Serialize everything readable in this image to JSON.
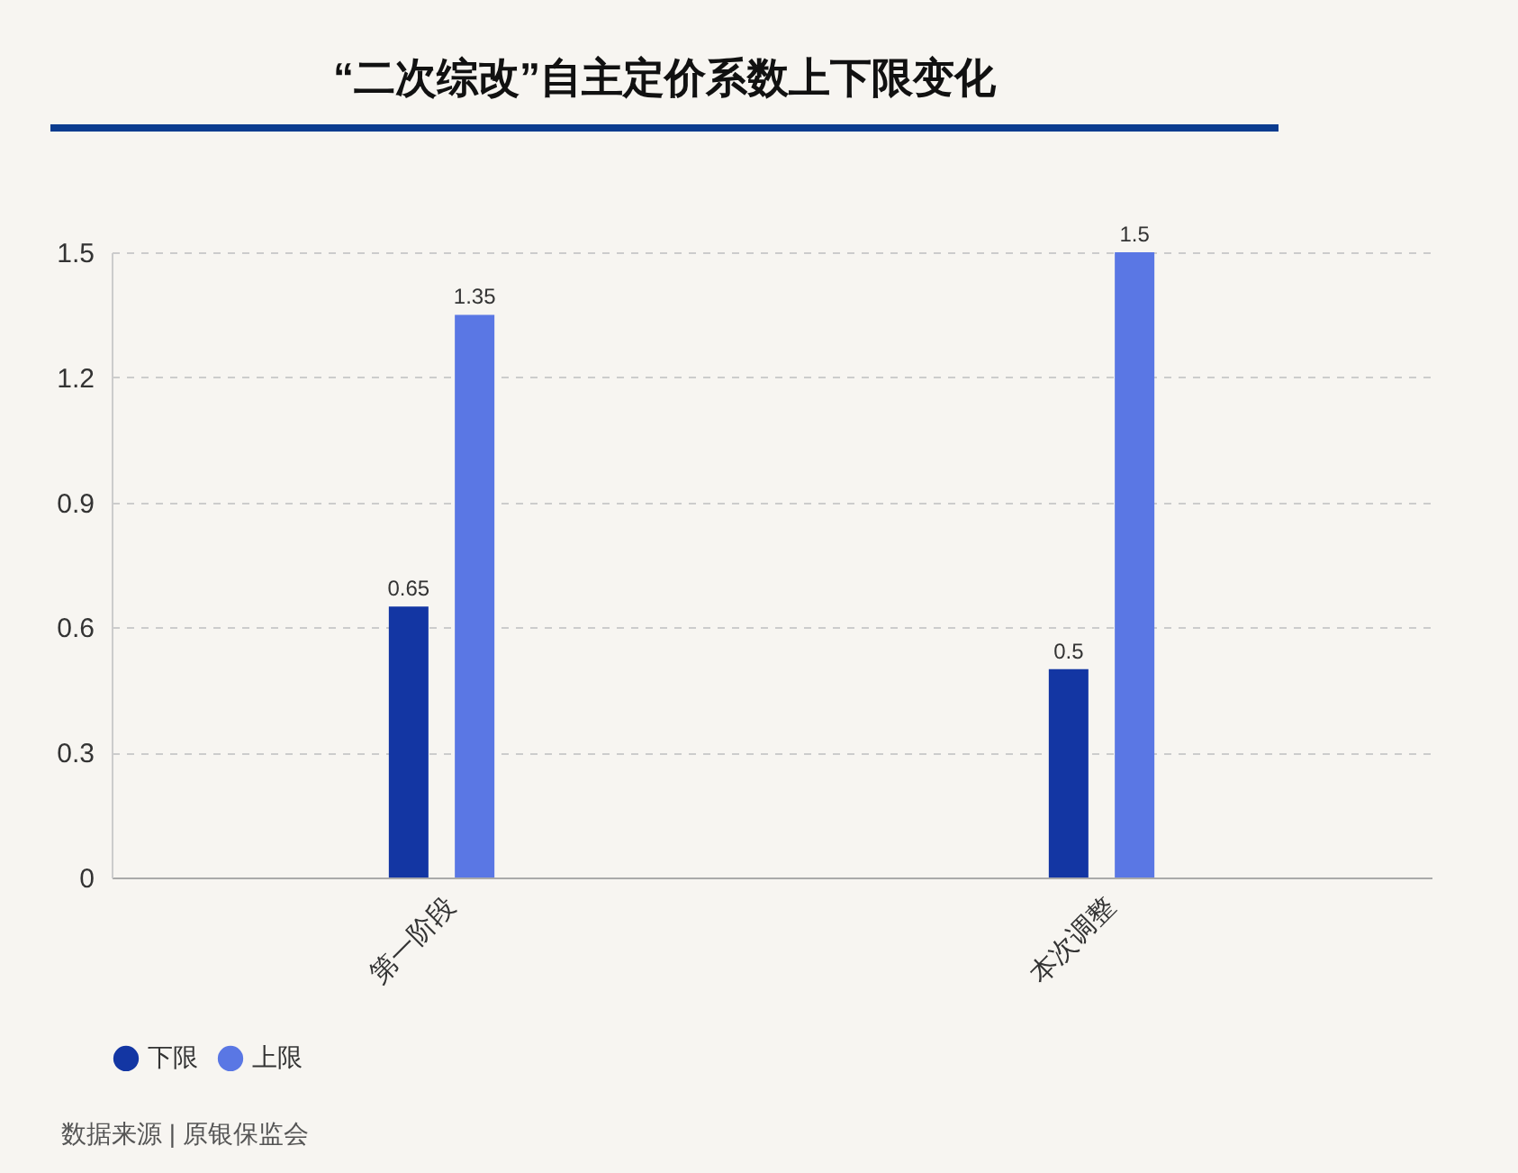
{
  "chart_data": {
    "type": "bar",
    "title": "“二次综改”自主定价系数上下限变化",
    "categories": [
      "第一阶段",
      "本次调整"
    ],
    "series": [
      {
        "name": "下限",
        "color": "#1336a3",
        "values": [
          0.65,
          0.5
        ]
      },
      {
        "name": "上限",
        "color": "#5a77e4",
        "values": [
          1.35,
          1.5
        ]
      }
    ],
    "ylim": [
      0,
      1.5
    ],
    "yticks": [
      0,
      0.3,
      0.6,
      0.9,
      1.2,
      1.5
    ],
    "grid": "y",
    "legend": "bottom",
    "data_labels": true,
    "annotations": [
      "数据来源 | 原银保监会"
    ]
  }
}
